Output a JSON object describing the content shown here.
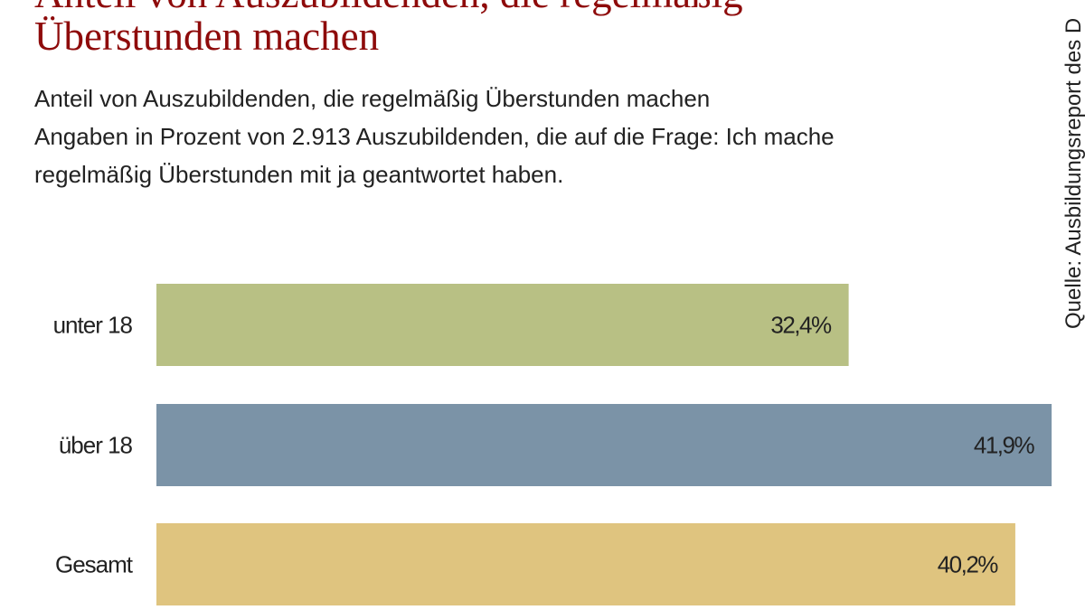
{
  "chart_data": {
    "type": "bar",
    "orientation": "horizontal",
    "title": "Anteil von Auszubildenden, die regelmäßig Überstunden machen",
    "subtitle_lines": [
      "Anteil von Auszubildenden, die regelmäßig Überstunden machen",
      "Angaben in Prozent von 2.913 Auszubildenden, die auf die Frage: Ich mache",
      "regelmäßig Überstunden mit ja geantwortet haben."
    ],
    "source": "Quelle: Ausbildungsreport des D",
    "categories": [
      "unter 18",
      "über 18",
      "Gesamt"
    ],
    "values": [
      32.4,
      41.9,
      40.2
    ],
    "value_labels": [
      "32,4%",
      "41,9%",
      "40,2%"
    ],
    "colors": [
      "#b8c084",
      "#7b93a7",
      "#dfc47f"
    ],
    "xlim": [
      0,
      42
    ],
    "grid": false,
    "legend": "none",
    "xlabel": "",
    "ylabel": ""
  }
}
